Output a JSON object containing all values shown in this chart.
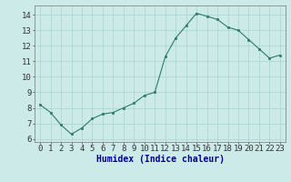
{
  "x": [
    0,
    1,
    2,
    3,
    4,
    5,
    6,
    7,
    8,
    9,
    10,
    11,
    12,
    13,
    14,
    15,
    16,
    17,
    18,
    19,
    20,
    21,
    22,
    23
  ],
  "y": [
    8.2,
    7.7,
    6.9,
    6.3,
    6.7,
    7.3,
    7.6,
    7.7,
    8.0,
    8.3,
    8.8,
    9.0,
    11.3,
    12.5,
    13.3,
    14.1,
    13.9,
    13.7,
    13.2,
    13.0,
    12.4,
    11.8,
    11.2,
    11.4
  ],
  "xlabel": "Humidex (Indice chaleur)",
  "ylim": [
    5.8,
    14.6
  ],
  "xlim": [
    -0.5,
    23.5
  ],
  "yticks": [
    6,
    7,
    8,
    9,
    10,
    11,
    12,
    13,
    14
  ],
  "xticks": [
    0,
    1,
    2,
    3,
    4,
    5,
    6,
    7,
    8,
    9,
    10,
    11,
    12,
    13,
    14,
    15,
    16,
    17,
    18,
    19,
    20,
    21,
    22,
    23
  ],
  "line_color": "#2d7b6f",
  "marker_color": "#2d7b6f",
  "bg_color": "#cceae7",
  "grid_color": "#aad4d0",
  "xlabel_fontsize": 7,
  "tick_fontsize": 6.5,
  "xlabel_color": "#00008b",
  "xlabel_fontweight": "bold"
}
